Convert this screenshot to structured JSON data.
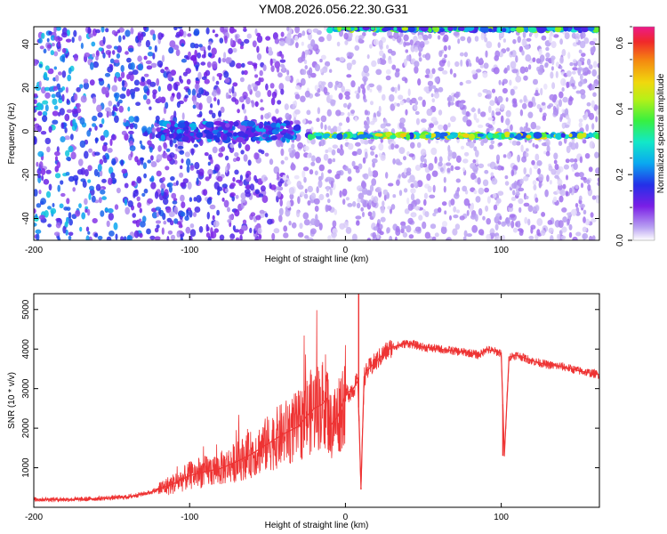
{
  "title": "YM08.2026.056.22.30.G31",
  "chart_data": [
    {
      "type": "heatmap",
      "xlabel": "Height of straight line (km)",
      "ylabel": "Frequency (Hz)",
      "xlim": [
        -200,
        163
      ],
      "ylim": [
        -50,
        48
      ],
      "xticks": [
        -200,
        -100,
        0,
        100
      ],
      "xtick_labels": [
        "-200",
        "-100",
        "0",
        "100"
      ],
      "yticks": [
        -40,
        -20,
        0,
        20,
        40
      ],
      "ytick_labels": [
        "-40",
        "-20",
        "0",
        "20",
        "40"
      ],
      "colorbar": {
        "label": "Normalized spectral amplitude",
        "range": [
          0.0,
          0.65
        ],
        "ticks": [
          0.0,
          0.2,
          0.4,
          0.6
        ],
        "tick_labels": [
          "0.0",
          "0.2",
          "0.4",
          "0.6"
        ]
      },
      "features": [
        {
          "name": "constant tone",
          "frequency_hz": 47,
          "x_from": -10,
          "x_to": 163,
          "amplitude": 0.35
        },
        {
          "name": "carrier line",
          "frequency_hz": -2,
          "x_from": -25,
          "x_to": 163,
          "amplitude": 0.4
        },
        {
          "name": "scattered signal",
          "frequency_hz": 0,
          "x_from": -120,
          "x_to": -30,
          "amplitude": 0.2
        }
      ]
    },
    {
      "type": "line",
      "xlabel": "Height of straight line (km)",
      "ylabel": "SNR (10 * v/v)",
      "xlim": [
        -200,
        163
      ],
      "ylim": [
        0,
        5400
      ],
      "xticks": [
        -200,
        -100,
        0,
        100
      ],
      "xtick_labels": [
        "-200",
        "-100",
        "0",
        "100"
      ],
      "yticks": [
        1000,
        2000,
        3000,
        4000,
        5000
      ],
      "ytick_labels": [
        "1000",
        "2000",
        "3000",
        "4000",
        "5000"
      ],
      "series": [
        {
          "name": "SNR",
          "color": "#ee3333",
          "x": [
            -200,
            -170,
            -140,
            -125,
            -110,
            -100,
            -90,
            -80,
            -70,
            -60,
            -50,
            -40,
            -30,
            -25,
            -20,
            -15,
            -12,
            -10,
            -5,
            0,
            5,
            8,
            10,
            12,
            15,
            20,
            25,
            30,
            35,
            40,
            50,
            60,
            70,
            80,
            85,
            88,
            90,
            95,
            100,
            102,
            105,
            110,
            120,
            130,
            140,
            150,
            163
          ],
          "y": [
            200,
            200,
            260,
            380,
            600,
            800,
            900,
            980,
            1150,
            1350,
            1600,
            1850,
            2050,
            2300,
            2500,
            2600,
            2750,
            2050,
            2300,
            2850,
            3000,
            3200,
            500,
            3300,
            3500,
            3700,
            3900,
            4050,
            4100,
            4150,
            4050,
            4000,
            3950,
            3900,
            3850,
            3900,
            4000,
            3950,
            3900,
            1300,
            3800,
            3850,
            3700,
            3600,
            3550,
            3450,
            3350
          ]
        }
      ],
      "annotations": [
        {
          "label": "spike",
          "x": 8.5,
          "y": 5400
        },
        {
          "label": "dropout",
          "x": 10,
          "y": 450
        },
        {
          "label": "dropout",
          "x": 101,
          "y": 1300
        }
      ]
    }
  ]
}
